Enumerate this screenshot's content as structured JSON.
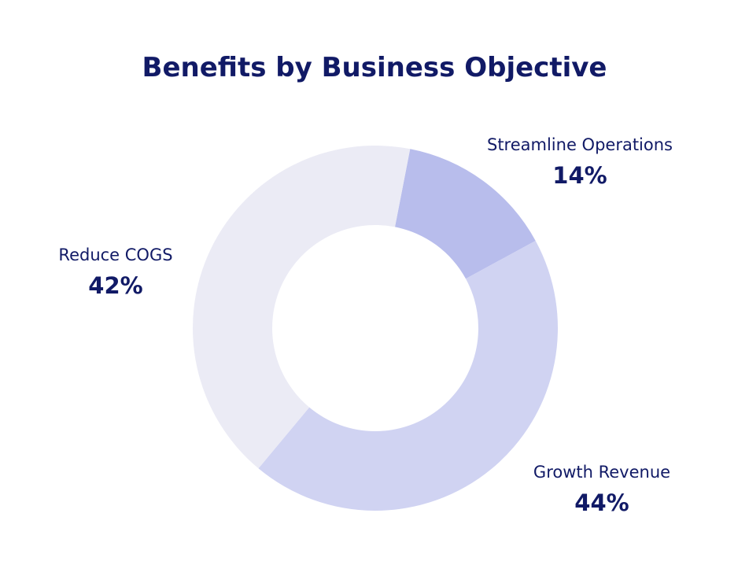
{
  "chart_data": {
    "type": "pie",
    "title": "Benefits by Business Objective",
    "hole": "donut",
    "slices": [
      {
        "label": "Streamline Operations",
        "value": 14,
        "value_label": "14%",
        "color": "#b8bdec",
        "label_side": "top-right"
      },
      {
        "label": "Growth Revenue",
        "value": 44,
        "value_label": "44%",
        "color": "#d0d3f2",
        "label_side": "bottom-right"
      },
      {
        "label": "Reduce COGS",
        "value": 42,
        "value_label": "42%",
        "color": "#ebebf5",
        "label_side": "left"
      }
    ],
    "colors": {
      "text": "#111a66",
      "background": "#ffffff"
    }
  }
}
